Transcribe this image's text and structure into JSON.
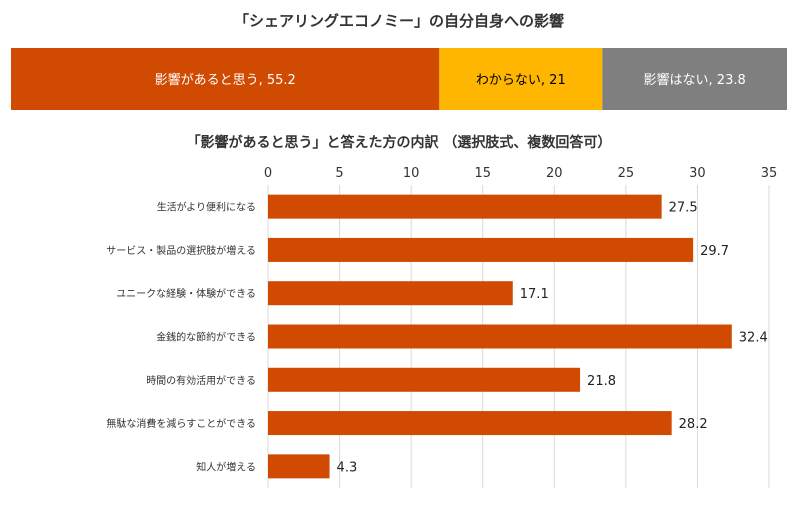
{
  "chart_data": [
    {
      "type": "bar",
      "orientation": "horizontal-stacked-100",
      "title": "「シェアリングエコノミー」の自分自身への影響",
      "segments": [
        {
          "label": "影響があると思う",
          "value": 55.2,
          "color": "#D04A02",
          "text_color": "#ffffff",
          "display": "影響があると思う, 55.2"
        },
        {
          "label": "わからない",
          "value": 21,
          "color": "#FFB600",
          "text_color": "#000000",
          "display": "わからない, 21"
        },
        {
          "label": "影響はない",
          "value": 23.8,
          "color": "#7F7F7F",
          "text_color": "#ffffff",
          "display": "影響はない, 23.8"
        }
      ]
    },
    {
      "type": "bar",
      "orientation": "horizontal",
      "title": "「影響があると思う」と答えた方の内訳 （選択肢式、複数回答可）",
      "categories": [
        "生活がより便利になる",
        "サービス・製品の選択肢が増える",
        "ユニークな経験・体験ができる",
        "金銭的な節約ができる",
        "時間の有効活用ができる",
        "無駄な消費を減らすことができる",
        "知人が増える"
      ],
      "values": [
        27.5,
        29.7,
        17.1,
        32.4,
        21.8,
        28.2,
        4.3
      ],
      "value_labels": [
        "27.5",
        "29.7",
        "17.1",
        "32.4",
        "21.8",
        "28.2",
        "4.3"
      ],
      "xlim": [
        0,
        35
      ],
      "ticks": [
        "0",
        "5",
        "10",
        "15",
        "20",
        "25",
        "30",
        "35"
      ],
      "grid": true,
      "bar_color": "#D04A02"
    }
  ]
}
